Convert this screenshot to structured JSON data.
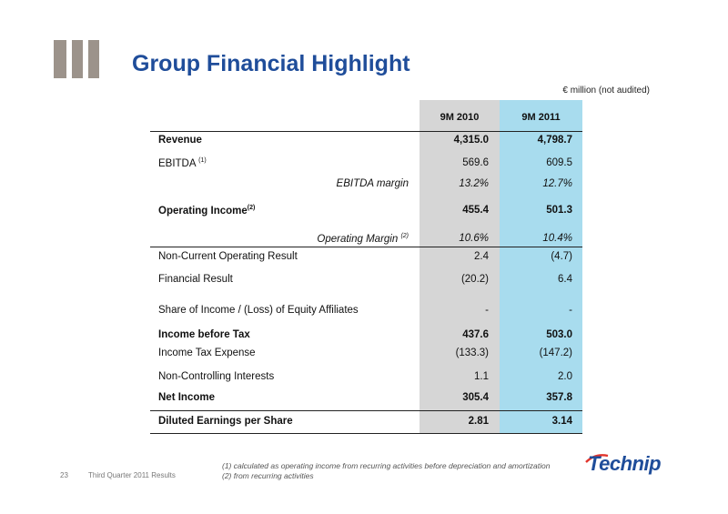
{
  "header": {
    "title": "Group Financial Highlight",
    "unit_note": "€ million (not audited)",
    "accent_color": "#1f4d9a",
    "bar_color": "#9c938b"
  },
  "table": {
    "col1_header": "9M 2010",
    "col2_header": "9M 2011",
    "rows": [
      {
        "label": "Revenue",
        "sup": "",
        "v1": "4,315.0",
        "v2": "4,798.7"
      },
      {
        "label": "EBITDA ",
        "sup": "(1)",
        "v1": "569.6",
        "v2": "609.5"
      },
      {
        "label": "EBITDA margin",
        "sup": "",
        "v1": "13.2%",
        "v2": "12.7%"
      },
      {
        "label": "Operating Income",
        "sup": "(2)",
        "v1": "455.4",
        "v2": "501.3"
      },
      {
        "label": "Operating Margin ",
        "sup": "(2)",
        "v1": "10.6%",
        "v2": "10.4%"
      },
      {
        "label": "Non-Current Operating Result",
        "sup": "",
        "v1": "2.4",
        "v2": "(4.7)"
      },
      {
        "label": "Financial Result",
        "sup": "",
        "v1": "(20.2)",
        "v2": "6.4"
      },
      {
        "label": "Share of Income / (Loss) of Equity Affiliates",
        "sup": "",
        "v1": "-",
        "v2": "-"
      },
      {
        "label": "Income before Tax",
        "sup": "",
        "v1": "437.6",
        "v2": "503.0"
      },
      {
        "label": "Income Tax Expense",
        "sup": "",
        "v1": "(133.3)",
        "v2": "(147.2)"
      },
      {
        "label": "Non-Controlling Interests",
        "sup": "",
        "v1": "1.1",
        "v2": "2.0"
      },
      {
        "label": "Net Income",
        "sup": "",
        "v1": "305.4",
        "v2": "357.8"
      },
      {
        "label": "Diluted Earnings per Share",
        "sup": "",
        "v1": "2.81",
        "v2": "3.14"
      }
    ]
  },
  "footer": {
    "page_number": "23",
    "deck_title": "Third Quarter 2011 Results",
    "note1": "(1) calculated as operating income from recurring activities before depreciation and amortization",
    "note2": "(2) from recurring activities",
    "logo_text": "Technip"
  }
}
